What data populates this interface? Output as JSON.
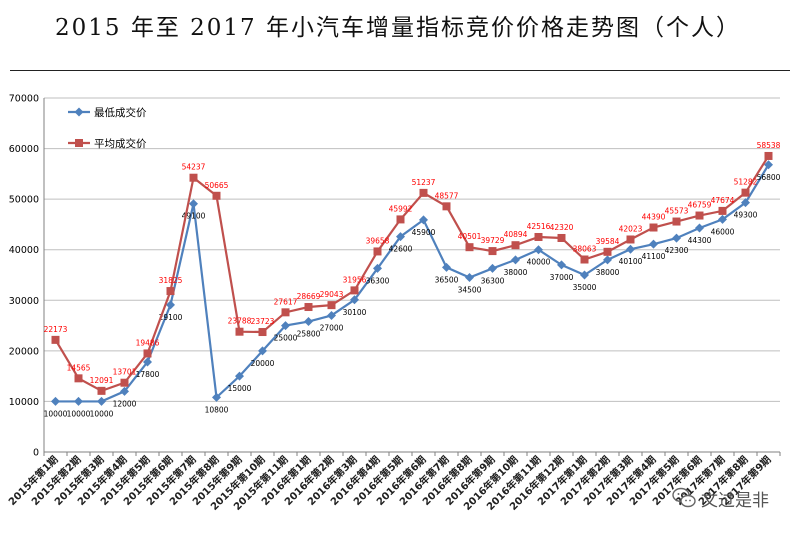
{
  "title": "2015 年至 2017 年小汽车增量指标竞价价格走势图（个人）",
  "watermark": {
    "text": "文过是非",
    "icon": "wechat-icon"
  },
  "chart_data": {
    "type": "line",
    "title": "2015 年至 2017 年小汽车增量指标竞价价格走势图（个人）",
    "xlabel": "",
    "ylabel": "",
    "ylim": [
      0,
      70000
    ],
    "yticks": [
      "0",
      "10000",
      "20000",
      "30000",
      "40000",
      "50000",
      "60000",
      "70000"
    ],
    "grid": "horizontal",
    "legend_position": "top-left",
    "categories": [
      "2015年第1期",
      "2015年第2期",
      "2015年第3期",
      "2015年第4期",
      "2015年第5期",
      "2015年第6期",
      "2015年第7期",
      "2015年第8期",
      "2015年第9期",
      "2015年第10期",
      "2015年第11期",
      "2016年第1期",
      "2016年第2期",
      "2016年第3期",
      "2016年第4期",
      "2016年第5期",
      "2016年第6期",
      "2016年第7期",
      "2016年第8期",
      "2016年第9期",
      "2016年第10期",
      "2016年第11期",
      "2016年第12期",
      "2017年第1期",
      "2017年第2期",
      "2017年第3期",
      "2017年第4期",
      "2017年第5期",
      "2017年第6期",
      "2017年第7期",
      "2017年第8期",
      "2017年第9期"
    ],
    "series": [
      {
        "name": "最低成交价",
        "color": "#4f81bd",
        "marker": "diamond",
        "labelColor": "#000000",
        "values": [
          10000,
          10000,
          10000,
          12000,
          17800,
          29100,
          49100,
          10800,
          15000,
          20000,
          25000,
          25800,
          27000,
          30100,
          36300,
          42600,
          45900,
          36500,
          34500,
          36300,
          38000,
          40000,
          37000,
          35000,
          38000,
          40100,
          41100,
          42300,
          44300,
          46000,
          49300,
          56800
        ]
      },
      {
        "name": "平均成交价",
        "color": "#c0504d",
        "marker": "square",
        "labelColor": "#ff0000",
        "values": [
          22173,
          14565,
          12091,
          13701,
          19486,
          31825,
          54237,
          50665,
          23788,
          23723,
          27617,
          28669,
          29043,
          31956,
          39658,
          45992,
          51237,
          48577,
          40501,
          39729,
          40894,
          42516,
          42320,
          38063,
          39584,
          42023,
          44390,
          45573,
          46759,
          47674,
          51282,
          58538
        ]
      }
    ]
  }
}
